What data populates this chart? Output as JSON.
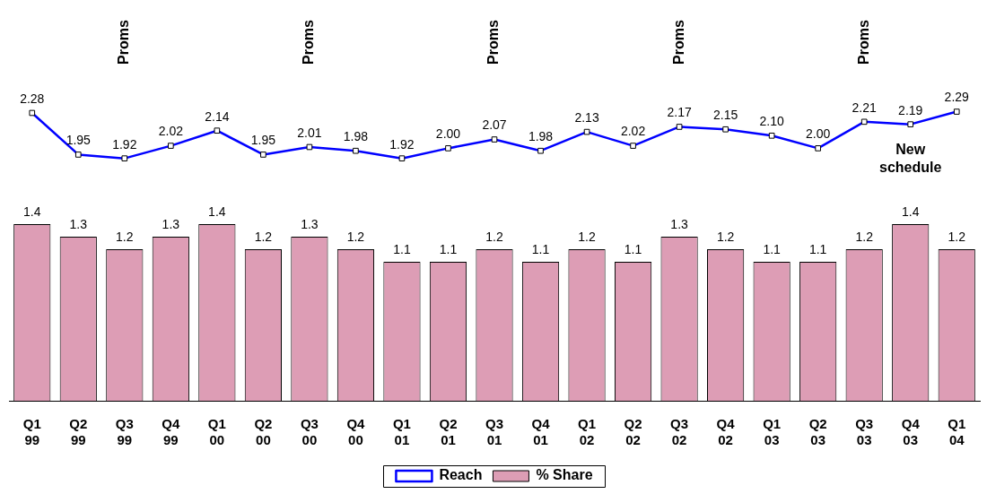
{
  "chart_data": {
    "type": "bar",
    "categories": [
      "Q1 99",
      "Q2 99",
      "Q3 99",
      "Q4 99",
      "Q1 00",
      "Q2 00",
      "Q3 00",
      "Q4 00",
      "Q1 01",
      "Q2 01",
      "Q3 01",
      "Q4 01",
      "Q1 02",
      "Q2 02",
      "Q3 02",
      "Q4 02",
      "Q1 03",
      "Q2 03",
      "Q3 03",
      "Q4 03",
      "Q1 04"
    ],
    "series": [
      {
        "name": "Reach",
        "type": "line",
        "color": "#0000ff",
        "values": [
          2.28,
          1.95,
          1.92,
          2.02,
          2.14,
          1.95,
          2.01,
          1.98,
          1.92,
          2.0,
          2.07,
          1.98,
          2.13,
          2.02,
          2.17,
          2.15,
          2.1,
          2.0,
          2.21,
          2.19,
          2.29
        ],
        "value_labels": [
          "2.28",
          "1.95",
          "1.92",
          "2.02",
          "2.14",
          "1.95",
          "2.01",
          "1.98",
          "1.92",
          "2.00",
          "2.07",
          "1.98",
          "2.13",
          "2.02",
          "2.17",
          "2.15",
          "2.10",
          "2.00",
          "2.21",
          "2.19",
          "2.29"
        ]
      },
      {
        "name": "% Share",
        "color": "#dd9db5",
        "values": [
          1.4,
          1.3,
          1.2,
          1.3,
          1.4,
          1.2,
          1.3,
          1.2,
          1.1,
          1.1,
          1.2,
          1.1,
          1.2,
          1.1,
          1.3,
          1.2,
          1.1,
          1.1,
          1.2,
          1.4,
          1.2
        ],
        "value_labels": [
          "1.4",
          "1.3",
          "1.2",
          "1.3",
          "1.4",
          "1.2",
          "1.3",
          "1.2",
          "1.1",
          "1.1",
          "1.2",
          "1.1",
          "1.2",
          "1.1",
          "1.3",
          "1.2",
          "1.1",
          "1.1",
          "1.2",
          "1.4",
          "1.2"
        ]
      }
    ],
    "tick_labels": "x",
    "marker": "square",
    "legend": "bottom",
    "grid": false,
    "annotations": [
      "Proms",
      "Proms",
      "Proms",
      "Proms",
      "Proms",
      "New schedule"
    ]
  }
}
